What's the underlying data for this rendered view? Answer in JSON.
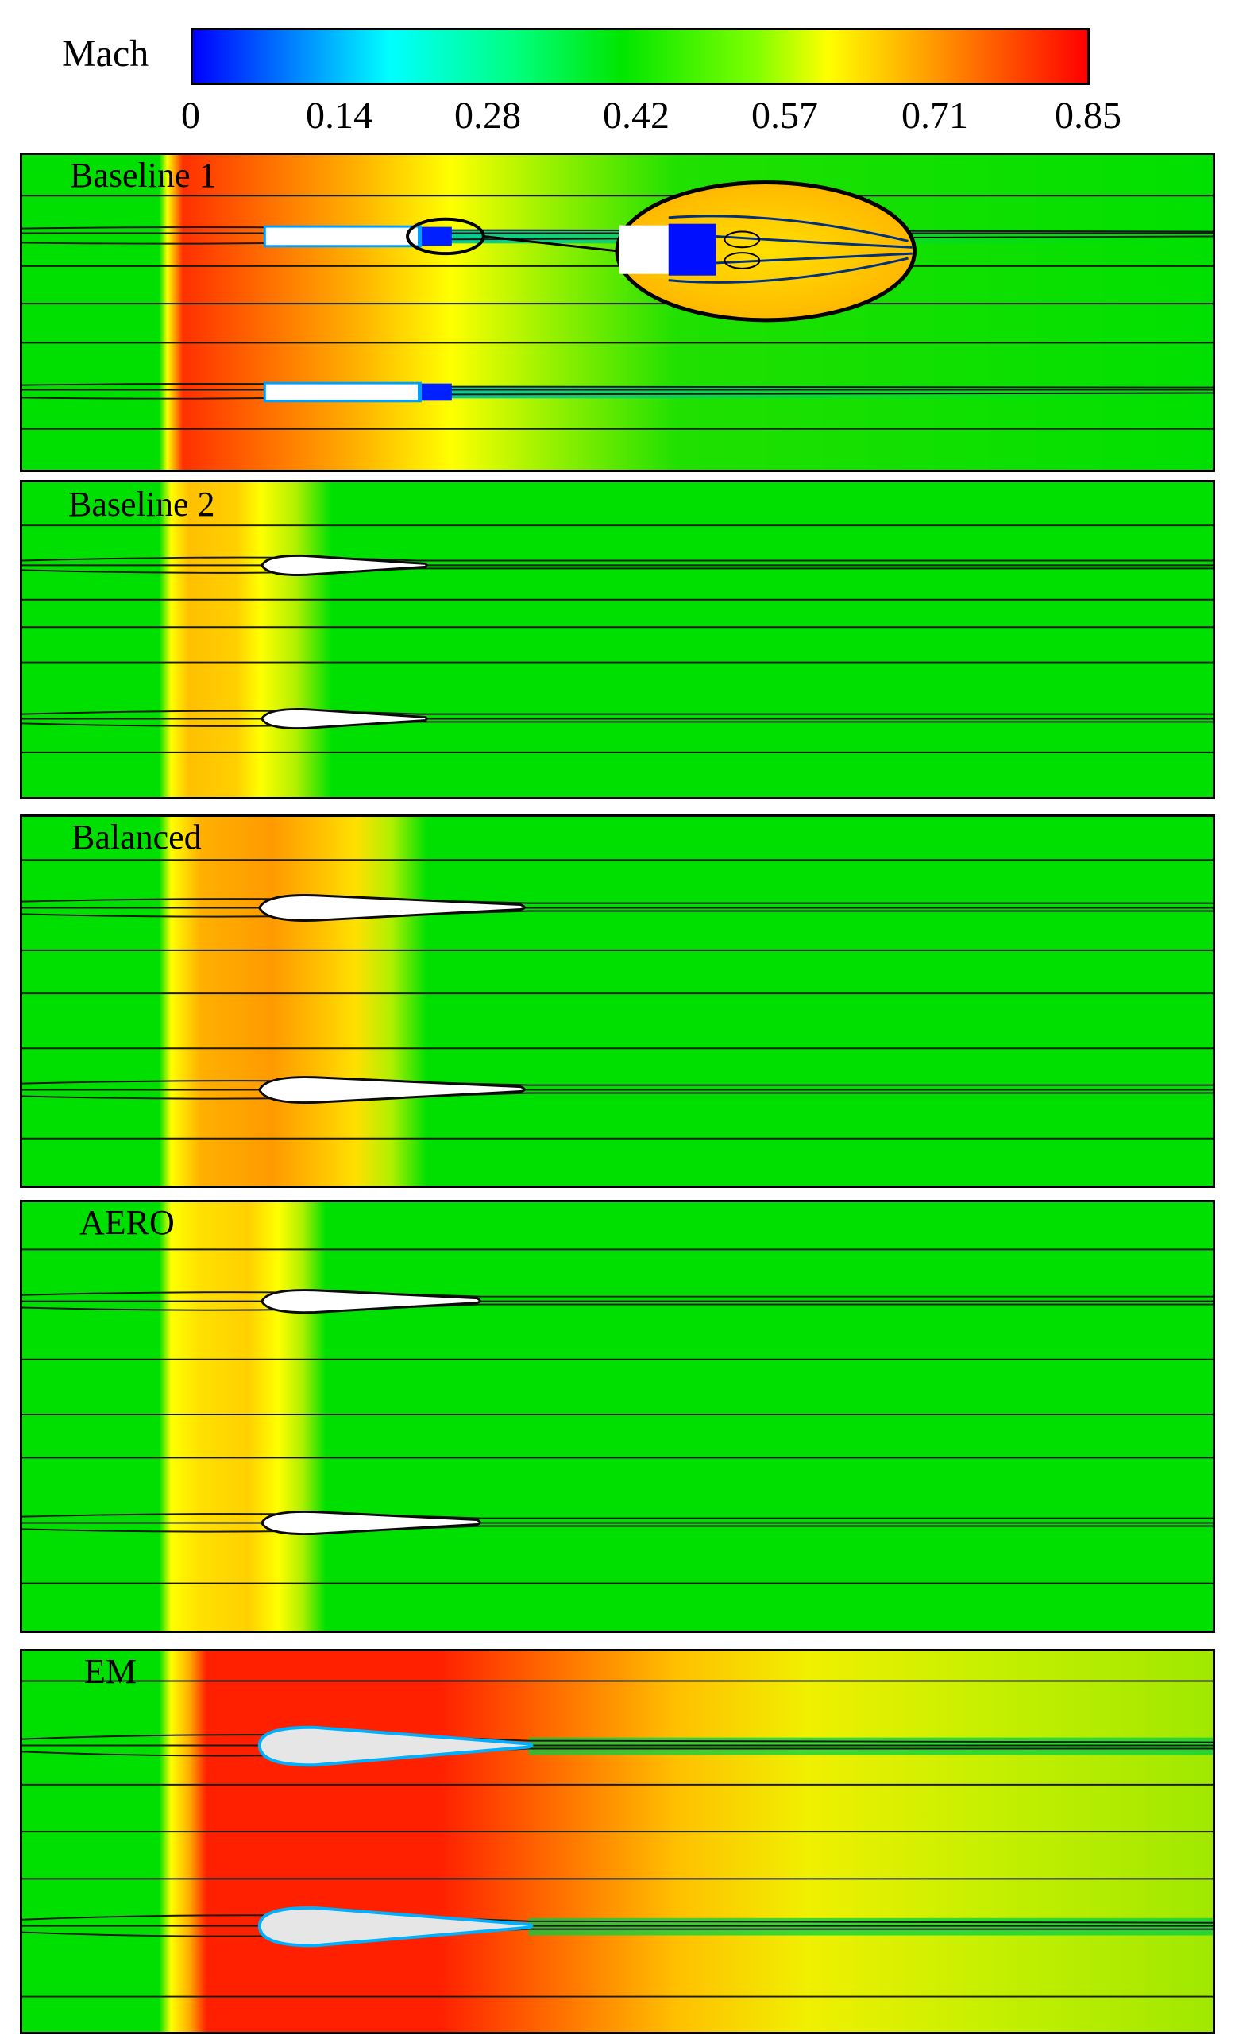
{
  "colorbar": {
    "label": "Mach",
    "ticks": [
      "0",
      "0.14",
      "0.28",
      "0.42",
      "0.57",
      "0.71",
      "0.85"
    ]
  },
  "panels": [
    {
      "label": "Baseline 1"
    },
    {
      "label": "Baseline 2"
    },
    {
      "label": "Balanced"
    },
    {
      "label": "AERO"
    },
    {
      "label": "EM"
    }
  ]
}
